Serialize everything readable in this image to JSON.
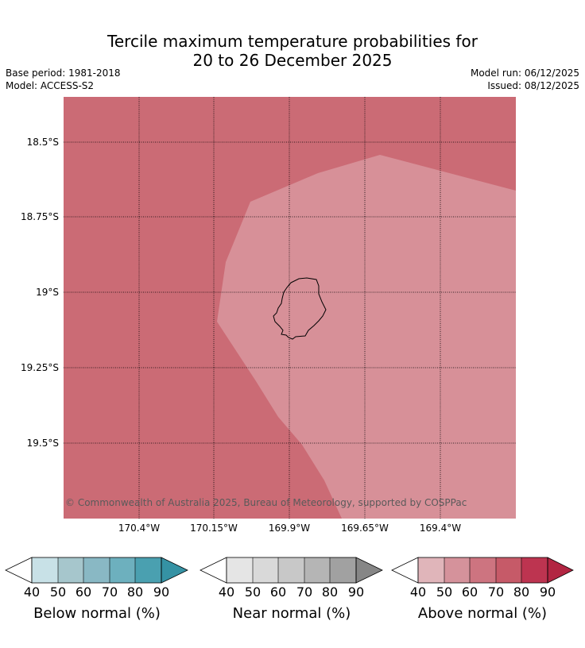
{
  "title": {
    "line1": "Tercile maximum temperature probabilities for",
    "line2": "20 to 26 December 2025"
  },
  "meta": {
    "base_period": "Base period: 1981-2018",
    "model": "Model: ACCESS-S2",
    "model_run": "Model run: 06/12/2025",
    "issued": "Issued: 08/12/2025"
  },
  "map": {
    "y_ticks": [
      "18.5°S",
      "18.75°S",
      "19°S",
      "19.25°S",
      "19.5°S"
    ],
    "x_ticks": [
      "170.4°W",
      "170.15°W",
      "169.9°W",
      "169.65°W",
      "169.4°W"
    ],
    "copyright": "© Commonwealth of Australia 2025, Bureau of Meteorology, supported by COSPPac",
    "region_colors": {
      "outer": "#cb6b75",
      "inner": "#d79098"
    }
  },
  "colorbars": [
    {
      "title": "Below normal (%)",
      "ticks": [
        "40",
        "50",
        "60",
        "70",
        "80",
        "90"
      ],
      "colors": [
        "#c8e1e7",
        "#a6c6cc",
        "#89b8c4",
        "#6db0be",
        "#4aa0b0",
        "#3592a4"
      ]
    },
    {
      "title": "Near normal (%)",
      "ticks": [
        "40",
        "50",
        "60",
        "70",
        "80",
        "90"
      ],
      "colors": [
        "#e5e5e5",
        "#d9d9d9",
        "#c8c8c8",
        "#b5b5b5",
        "#a1a1a1",
        "#868686"
      ]
    },
    {
      "title": "Above normal (%)",
      "ticks": [
        "40",
        "50",
        "60",
        "70",
        "80",
        "90"
      ],
      "colors": [
        "#e0b5ba",
        "#d5929b",
        "#cd7480",
        "#c65a68",
        "#bd3450",
        "#b22542"
      ]
    }
  ]
}
